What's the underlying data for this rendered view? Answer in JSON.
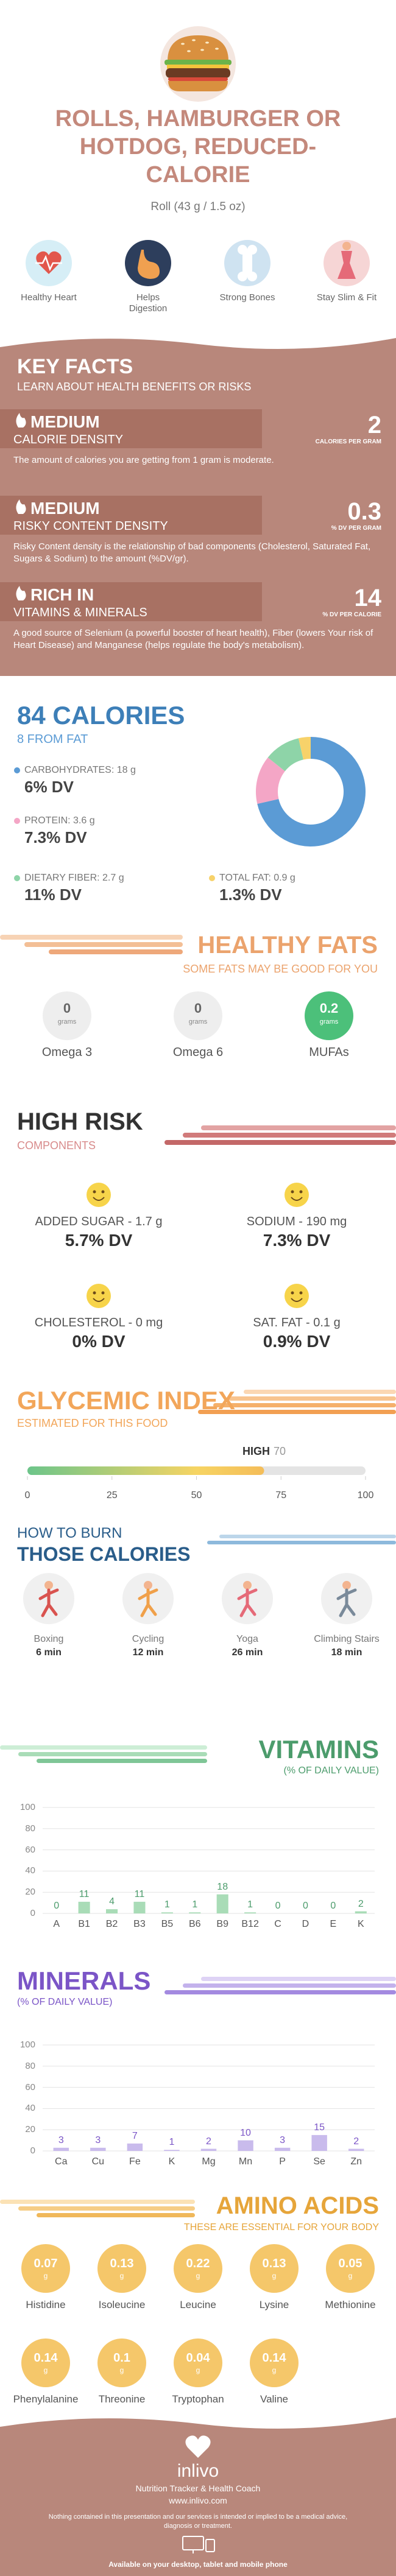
{
  "header": {
    "title": "ROLLS, HAMBURGER OR HOTDOG, REDUCED-CALORIE",
    "serving": "Roll (43 g / 1.5 oz)",
    "benefits": [
      "Healthy Heart",
      "Helps Digestion",
      "Strong Bones",
      "Stay Slim & Fit"
    ]
  },
  "key_facts": {
    "title": "KEY FACTS",
    "subtitle": "LEARN ABOUT HEALTH BENEFITS OR RISKS",
    "items": [
      {
        "level": "MEDIUM",
        "name": "CALORIE DENSITY",
        "value": 2,
        "unit": "CALORIES PER GRAM",
        "description": "The amount of calories you are getting from 1 gram is moderate."
      },
      {
        "level": "MEDIUM",
        "name": "RISKY CONTENT DENSITY",
        "value": 0.3,
        "unit": "% DV PER GRAM",
        "description": "Risky Content density is the relationship of bad components (Cholesterol, Saturated Fat, Sugars & Sodium) to the amount (%DV/gr)."
      },
      {
        "level": "RICH IN",
        "name": "VITAMINS & MINERALS",
        "value": 14,
        "unit": "% DV PER CALORIE",
        "description": "A good source of Selenium (a powerful booster of heart health), Fiber (lowers Your risk of Heart Disease) and Manganese (helps regulate the body's metabolism)."
      }
    ]
  },
  "calories": {
    "title": "84 CALORIES",
    "subtitle": "8 FROM FAT",
    "nutrients": [
      {
        "label": "CARBOHYDRATES: 18 g",
        "grams": 18,
        "dv": "6% DV",
        "color": "#5b9bd5"
      },
      {
        "label": "PROTEIN: 3.6 g",
        "grams": 3.6,
        "dv": "7.3% DV",
        "color": "#f4a6c6"
      },
      {
        "label": "DIETARY FIBER: 2.7 g",
        "grams": 2.7,
        "dv": "11% DV",
        "color": "#8ed4a8"
      },
      {
        "label": "TOTAL FAT: 0.9 g",
        "grams": 0.9,
        "dv": "1.3% DV",
        "color": "#f7d26a"
      }
    ]
  },
  "healthy_fats": {
    "title": "HEALTHY FATS",
    "subtitle": "SOME FATS MAY BE GOOD FOR YOU",
    "items": [
      {
        "name": "Omega 3",
        "value": 0,
        "unit": "grams"
      },
      {
        "name": "Omega 6",
        "value": 0,
        "unit": "grams"
      },
      {
        "name": "MUFAs",
        "value": 0.2,
        "unit": "grams"
      }
    ]
  },
  "high_risk": {
    "title": "HIGH RISK",
    "subtitle": "COMPONENTS",
    "items": [
      {
        "label": "ADDED SUGAR - 1.7 g",
        "dv": "5.7% DV"
      },
      {
        "label": "SODIUM - 190 mg",
        "dv": "7.3% DV"
      },
      {
        "label": "CHOLESTEROL - 0 mg",
        "dv": "0% DV"
      },
      {
        "label": "SAT. FAT - 0.1 g",
        "dv": "0.9% DV"
      }
    ]
  },
  "glycemic_index": {
    "title": "GLYCEMIC INDEX",
    "subtitle": "ESTIMATED FOR THIS FOOD",
    "level": "HIGH",
    "value": 70,
    "xlim": [
      0,
      100
    ],
    "xticks": [
      0,
      25,
      50,
      75,
      100
    ]
  },
  "burn": {
    "title_line1": "HOW TO BURN",
    "title_line2": "THOSE CALORIES",
    "activities": [
      {
        "name": "Boxing",
        "time": "6 min"
      },
      {
        "name": "Cycling",
        "time": "12 min"
      },
      {
        "name": "Yoga",
        "time": "26 min"
      },
      {
        "name": "Climbing Stairs",
        "time": "18 min"
      }
    ]
  },
  "chart_data": [
    {
      "type": "bar",
      "title": "VITAMINS",
      "subtitle": "(% OF DAILY VALUE)",
      "categories": [
        "A",
        "B1",
        "B2",
        "B3",
        "B5",
        "B6",
        "B9",
        "B12",
        "C",
        "D",
        "E",
        "K"
      ],
      "values": [
        0,
        11,
        4,
        11,
        1,
        1,
        18,
        1,
        0,
        0,
        0,
        2
      ],
      "color": "#a9dcb7",
      "label_color": "#4c9c6c",
      "ylim": [
        0,
        100
      ],
      "yticks": [
        0,
        20,
        40,
        60,
        80,
        100
      ],
      "grid": true
    },
    {
      "type": "bar",
      "title": "MINERALS",
      "subtitle": "(% OF DAILY VALUE)",
      "categories": [
        "Ca",
        "Cu",
        "Fe",
        "K",
        "Mg",
        "Mn",
        "P",
        "Se",
        "Zn"
      ],
      "values": [
        3,
        3,
        7,
        1,
        2,
        10,
        3,
        15,
        2
      ],
      "color": "#c9bbec",
      "label_color": "#7b55c7",
      "ylim": [
        0,
        100
      ],
      "yticks": [
        0,
        20,
        40,
        60,
        80,
        100
      ],
      "grid": true
    }
  ],
  "amino_acids": {
    "title": "AMINO ACIDS",
    "subtitle": "THESE ARE ESSENTIAL FOR YOUR BODY",
    "unit": "g",
    "items": [
      {
        "name": "Histidine",
        "value": 0.07
      },
      {
        "name": "Isoleucine",
        "value": 0.13
      },
      {
        "name": "Leucine",
        "value": 0.22
      },
      {
        "name": "Lysine",
        "value": 0.13
      },
      {
        "name": "Methionine",
        "value": 0.05
      },
      {
        "name": "Phenylalanine",
        "value": 0.14
      },
      {
        "name": "Threonine",
        "value": 0.1
      },
      {
        "name": "Tryptophan",
        "value": 0.04
      },
      {
        "name": "Valine",
        "value": 0.14
      }
    ]
  },
  "footer": {
    "brand": "inlivo",
    "tagline": "Nutrition Tracker & Health Coach",
    "url": "www.inlivo.com",
    "disclaimer": "Nothing contained in this presentation and our services is intended or implied to be a medical advice, diagnosis or treatment.",
    "availability": "Available on your desktop, tablet and mobile phone"
  }
}
